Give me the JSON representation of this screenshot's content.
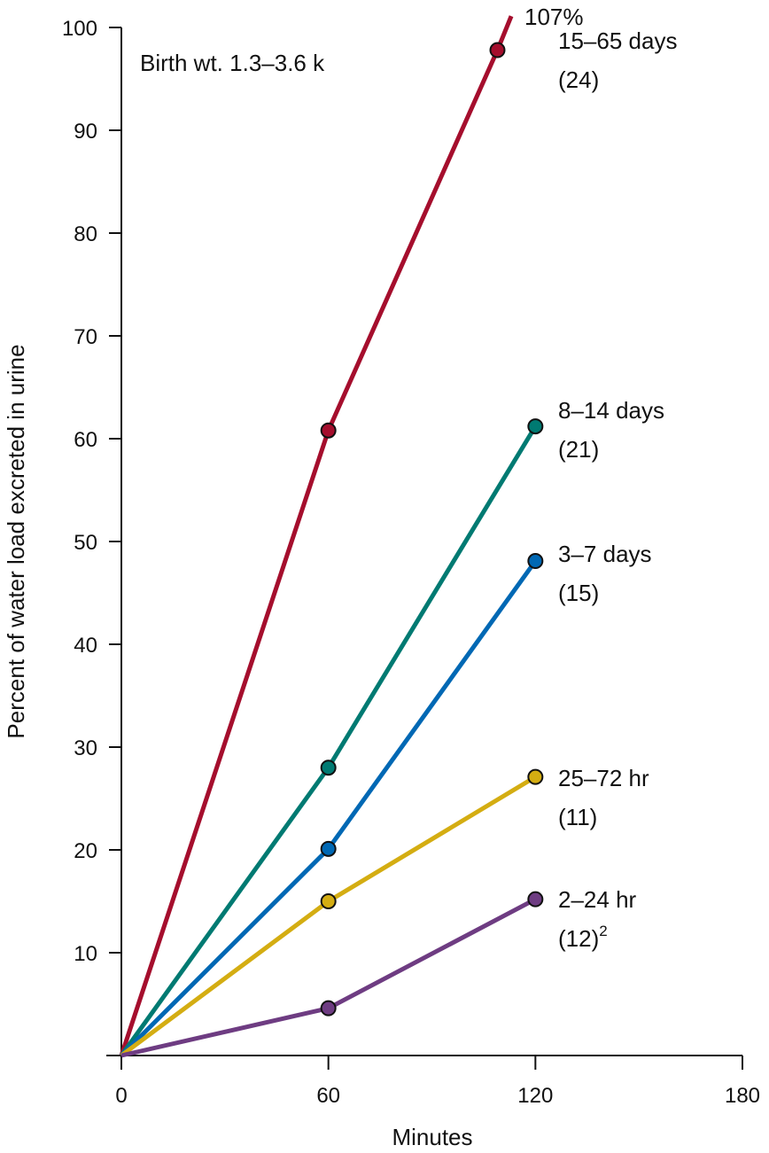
{
  "chart_data": {
    "type": "line",
    "xlabel": "Minutes",
    "ylabel": "Percent of water load excreted in urine",
    "xlim": [
      0,
      180
    ],
    "ylim": [
      0,
      100
    ],
    "xticks": [
      "0",
      "60",
      "120",
      "180"
    ],
    "yticks": [
      "10",
      "20",
      "30",
      "40",
      "50",
      "60",
      "70",
      "80",
      "90",
      "100"
    ],
    "grid": false,
    "annotation": "Birth wt. 1.3–3.6 k",
    "series": [
      {
        "name": "15–65 days",
        "n": "(24)",
        "color": "#a50e2d",
        "points": [
          [
            0,
            0
          ],
          [
            60,
            60.8
          ],
          [
            109,
            97.8
          ]
        ],
        "line_end": [
          113,
          101.1
        ],
        "end_label": "107%"
      },
      {
        "name": "8–14 days",
        "n": "(21)",
        "color": "#007a72",
        "points": [
          [
            0,
            0
          ],
          [
            60,
            28.0
          ],
          [
            120,
            61.2
          ]
        ]
      },
      {
        "name": "3–7 days",
        "n": "(15)",
        "color": "#0068b4",
        "points": [
          [
            0,
            0
          ],
          [
            60,
            20.1
          ],
          [
            120,
            48.1
          ]
        ]
      },
      {
        "name": "25–72 hr",
        "n": "(11)",
        "color": "#d4ad12",
        "points": [
          [
            0,
            0
          ],
          [
            60,
            15.0
          ],
          [
            120,
            27.1
          ]
        ]
      },
      {
        "name": "2–24 hr",
        "n": "(12)",
        "n_sup": "2",
        "color": "#6e3c82",
        "points": [
          [
            0,
            0
          ],
          [
            60,
            4.6
          ],
          [
            120,
            15.2
          ]
        ]
      }
    ]
  }
}
